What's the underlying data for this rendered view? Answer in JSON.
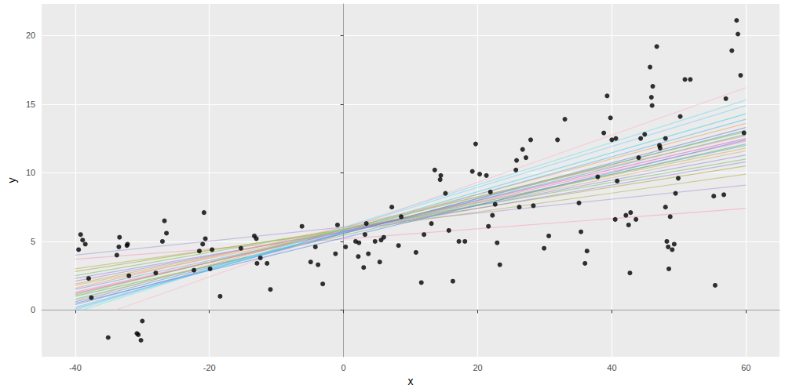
{
  "chart_data": {
    "type": "scatter",
    "x_label": "x",
    "y_label": "y",
    "xlim": [
      -45,
      65
    ],
    "ylim": [
      -3.4,
      22.3
    ],
    "xticks": [
      -40,
      -20,
      0,
      20,
      40,
      60
    ],
    "yticks": [
      0,
      5,
      10,
      15,
      20
    ],
    "grid": true,
    "series": [
      {
        "type": "scatter",
        "color": "#000000",
        "marker": "circle",
        "x": [
          -39.5,
          -39.2,
          -38.9,
          -38.5,
          -38,
          -37.6,
          -35.1,
          -33.8,
          -33.5,
          -33.4,
          -32.3,
          -32.2,
          -32,
          -30.8,
          -30.6,
          -30.2,
          -30,
          -28,
          -27,
          -26.7,
          -26.4,
          -22.3,
          -21.5,
          -21,
          -20.8,
          -20.6,
          -19.9,
          -19.6,
          -18.4,
          -15.3,
          -13.3,
          -13,
          -12.9,
          -12.4,
          -11.4,
          -10.9,
          -6.2,
          -4.9,
          -4.2,
          -3.8,
          -3.1,
          -1.2,
          -0.9,
          0.3,
          1.8,
          2.2,
          2.3,
          3,
          3.2,
          3.4,
          3.7,
          4.7,
          5.4,
          5.6,
          6,
          7.2,
          8.2,
          8.6,
          10.8,
          11.6,
          12,
          13.1,
          13.6,
          14.4,
          14.5,
          15.2,
          15.7,
          16.3,
          17.2,
          18.1,
          19.2,
          19.7,
          20.3,
          21.3,
          21.6,
          21.9,
          22.2,
          22.6,
          22.9,
          23.3,
          25.7,
          25.8,
          26.2,
          26.7,
          27.2,
          27.9,
          28.3,
          29.9,
          30.6,
          31.9,
          33,
          35.1,
          35.4,
          36,
          36.3,
          37.9,
          38.8,
          39.3,
          39.8,
          40,
          40.6,
          40.5,
          40.8,
          42.1,
          42.5,
          42.7,
          42.8,
          43.6,
          44,
          44.3,
          44.9,
          45.7,
          45.9,
          46,
          46.1,
          46.7,
          47.1,
          47.2,
          48,
          48,
          48.2,
          48.4,
          48.5,
          48.7,
          49,
          49.3,
          49.5,
          49.9,
          50.2,
          50.9,
          51.7,
          55.2,
          55.4,
          56.7,
          57,
          57.9,
          58.6,
          58.8,
          59.2,
          59.7
        ],
        "values": [
          4.4,
          5.5,
          5.1,
          4.8,
          2.3,
          0.9,
          -2,
          4,
          4.6,
          5.3,
          4.7,
          4.8,
          2.5,
          -1.7,
          -1.8,
          -2.2,
          -0.8,
          2.7,
          5,
          6.5,
          5.6,
          2.9,
          4.3,
          4.8,
          7.1,
          5.2,
          3,
          4.4,
          1,
          4.5,
          5.4,
          5.2,
          3.4,
          3.8,
          3.4,
          1.5,
          6.1,
          3.5,
          4.6,
          3.3,
          1.9,
          4.1,
          6.2,
          4.6,
          5,
          3.9,
          4.9,
          3.1,
          5.5,
          6.3,
          4.1,
          5,
          3.5,
          5.1,
          5.3,
          7.5,
          4.7,
          6.8,
          4.2,
          2,
          5.5,
          6.3,
          10.2,
          9.5,
          9.8,
          8.5,
          5.8,
          2.1,
          5,
          5,
          10.1,
          12.1,
          9.9,
          9.8,
          6.1,
          8.6,
          6.9,
          7.7,
          4.9,
          3.3,
          10.2,
          10.9,
          7.5,
          11.7,
          11.1,
          12.4,
          7.6,
          4.5,
          5.4,
          12.4,
          13.9,
          7.8,
          5.7,
          3.4,
          4.3,
          9.7,
          12.9,
          15.6,
          14,
          12.4,
          12.5,
          6.6,
          9.4,
          6.9,
          6.2,
          2.7,
          7.1,
          6.6,
          11.1,
          12.5,
          12.8,
          17.7,
          15.5,
          14.9,
          16.3,
          19.2,
          12,
          11.8,
          12.5,
          7.5,
          5,
          4.6,
          3,
          6.8,
          4.4,
          4.8,
          8.5,
          9.6,
          14.1,
          16.8,
          16.8,
          8.3,
          1.8,
          8.4,
          15.4,
          18.9,
          21.1,
          20.1,
          17.1,
          12.9
        ]
      },
      {
        "type": "line",
        "color": "#f8a0c8",
        "x": [
          -40,
          60
        ],
        "values": [
          3.7,
          7.4
        ]
      },
      {
        "type": "line",
        "color": "#b39ddb",
        "x": [
          -40,
          60
        ],
        "values": [
          4.0,
          9.1
        ]
      },
      {
        "type": "line",
        "color": "#b5b560",
        "x": [
          -40,
          60
        ],
        "values": [
          3.0,
          9.9
        ]
      },
      {
        "type": "line",
        "color": "#a8b04a",
        "x": [
          -40,
          60
        ],
        "values": [
          2.8,
          10.5
        ]
      },
      {
        "type": "line",
        "color": "#7cc46a",
        "x": [
          -40,
          60
        ],
        "values": [
          2.5,
          11.0
        ]
      },
      {
        "type": "line",
        "color": "#9a8fe0",
        "x": [
          -40,
          60
        ],
        "values": [
          2.1,
          11.3
        ]
      },
      {
        "type": "line",
        "color": "#d2b48c",
        "x": [
          -40,
          60
        ],
        "values": [
          1.8,
          11.6
        ]
      },
      {
        "type": "line",
        "color": "#6fa8dc",
        "x": [
          -40,
          60
        ],
        "values": [
          1.5,
          12.0
        ]
      },
      {
        "type": "line",
        "color": "#f48fb1",
        "x": [
          -40,
          60
        ],
        "values": [
          1.3,
          12.3
        ]
      },
      {
        "type": "line",
        "color": "#e05fd0",
        "x": [
          -40,
          60
        ],
        "values": [
          1.2,
          12.5
        ]
      },
      {
        "type": "line",
        "color": "#66bb6a",
        "x": [
          -40,
          60
        ],
        "values": [
          1.0,
          12.1
        ]
      },
      {
        "type": "line",
        "color": "#4db6ac",
        "x": [
          -40,
          60
        ],
        "values": [
          0.8,
          12.8
        ]
      },
      {
        "type": "line",
        "color": "#5c9bd6",
        "x": [
          -40,
          60
        ],
        "values": [
          0.6,
          13.1
        ]
      },
      {
        "type": "line",
        "color": "#7986cb",
        "x": [
          -40,
          60
        ],
        "values": [
          0.4,
          13.3
        ]
      },
      {
        "type": "line",
        "color": "#f0a860",
        "x": [
          -40,
          60
        ],
        "values": [
          0.7,
          13.6
        ]
      },
      {
        "type": "line",
        "color": "#64b5f6",
        "x": [
          -40,
          60
        ],
        "values": [
          0.2,
          13.9
        ]
      },
      {
        "type": "line",
        "color": "#4dd0e1",
        "x": [
          -40,
          60
        ],
        "values": [
          0.1,
          14.3
        ]
      },
      {
        "type": "line",
        "color": "#81d4fa",
        "x": [
          -40,
          60
        ],
        "values": [
          0.0,
          14.9
        ]
      },
      {
        "type": "line",
        "color": "#80deea",
        "x": [
          -39,
          60
        ],
        "values": [
          0.0,
          15.3
        ]
      },
      {
        "type": "line",
        "color": "#f8bbd0",
        "x": [
          -34,
          60
        ],
        "values": [
          0.0,
          16.2
        ]
      },
      {
        "type": "line",
        "color": "#a78bda",
        "x": [
          -40,
          60
        ],
        "values": [
          2.3,
          10.8
        ]
      },
      {
        "type": "line",
        "color": "#c9b458",
        "x": [
          -40,
          60
        ],
        "values": [
          1.9,
          11.8
        ]
      },
      {
        "type": "line",
        "color": "#f4a08c",
        "x": [
          -40,
          60
        ],
        "values": [
          1.6,
          12.7
        ]
      },
      {
        "type": "line",
        "color": "#8bc34a",
        "x": [
          -40,
          60
        ],
        "values": [
          1.1,
          13.0
        ]
      },
      {
        "type": "line",
        "color": "#5a8fe8",
        "x": [
          -40,
          60
        ],
        "values": [
          0.5,
          12.4
        ]
      }
    ]
  }
}
